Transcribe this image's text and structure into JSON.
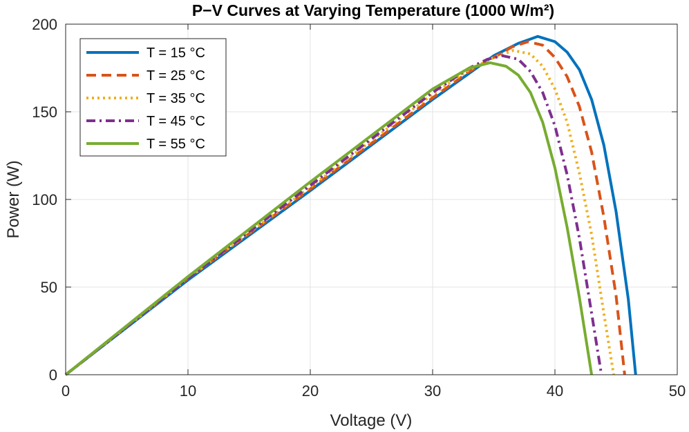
{
  "chart_data": {
    "type": "line",
    "title": "P−V Curves at Varying Temperature (1000 W/m²)",
    "xlabel": "Voltage (V)",
    "ylabel": "Power (W)",
    "xlim": [
      0,
      50
    ],
    "ylim": [
      0,
      200
    ],
    "xticks": [
      0,
      10,
      20,
      30,
      40,
      50
    ],
    "yticks": [
      0,
      50,
      100,
      150,
      200
    ],
    "xtick_labels": [
      "0",
      "10",
      "20",
      "30",
      "40",
      "50"
    ],
    "ytick_labels": [
      "0",
      "50",
      "100",
      "150",
      "200"
    ],
    "grid": true,
    "legend_position": "top-left",
    "series": [
      {
        "name": "T = 15 °C",
        "color": "#0072BD",
        "dash": "solid",
        "points": [
          [
            0,
            0
          ],
          [
            10,
            54
          ],
          [
            20,
            105
          ],
          [
            30,
            157
          ],
          [
            33,
            172
          ],
          [
            35,
            182
          ],
          [
            37,
            189
          ],
          [
            38.6,
            193
          ],
          [
            40,
            190
          ],
          [
            41,
            184
          ],
          [
            42,
            174
          ],
          [
            43,
            157
          ],
          [
            44,
            131
          ],
          [
            45,
            93
          ],
          [
            46,
            43
          ],
          [
            46.6,
            0
          ]
        ]
      },
      {
        "name": "T = 25 °C",
        "color": "#D95319",
        "dash": "dashed",
        "points": [
          [
            0,
            0
          ],
          [
            10,
            55
          ],
          [
            20,
            106
          ],
          [
            30,
            158
          ],
          [
            33,
            173
          ],
          [
            35,
            181
          ],
          [
            36.5,
            187
          ],
          [
            37.8,
            190
          ],
          [
            39,
            188
          ],
          [
            40,
            181
          ],
          [
            41,
            170
          ],
          [
            42,
            153
          ],
          [
            43,
            127
          ],
          [
            44,
            90
          ],
          [
            45,
            45
          ],
          [
            45.7,
            0
          ]
        ]
      },
      {
        "name": "T = 35 °C",
        "color": "#EDB120",
        "dash": "dotted",
        "points": [
          [
            0,
            0
          ],
          [
            10,
            55
          ],
          [
            20,
            107
          ],
          [
            30,
            160
          ],
          [
            33,
            174
          ],
          [
            35,
            181
          ],
          [
            36.6,
            185
          ],
          [
            38,
            183
          ],
          [
            39,
            176
          ],
          [
            40,
            163
          ],
          [
            41,
            144
          ],
          [
            42,
            115
          ],
          [
            43,
            80
          ],
          [
            44,
            35
          ],
          [
            44.8,
            0
          ]
        ]
      },
      {
        "name": "T = 45 °C",
        "color": "#7E2F8E",
        "dash": "dashdot",
        "points": [
          [
            0,
            0
          ],
          [
            10,
            55
          ],
          [
            20,
            108
          ],
          [
            30,
            161
          ],
          [
            33,
            175
          ],
          [
            34.5,
            180
          ],
          [
            35.7,
            182
          ],
          [
            37,
            180
          ],
          [
            38,
            173
          ],
          [
            39,
            161
          ],
          [
            40,
            142
          ],
          [
            41,
            114
          ],
          [
            42,
            78
          ],
          [
            43,
            35
          ],
          [
            43.8,
            0
          ]
        ]
      },
      {
        "name": "T = 55 °C",
        "color": "#77AC30",
        "dash": "solid",
        "points": [
          [
            0,
            0
          ],
          [
            10,
            56
          ],
          [
            20,
            110
          ],
          [
            30,
            163
          ],
          [
            33,
            175
          ],
          [
            34.7,
            178
          ],
          [
            36,
            176
          ],
          [
            37,
            171
          ],
          [
            38,
            161
          ],
          [
            39,
            144
          ],
          [
            40,
            118
          ],
          [
            41,
            84
          ],
          [
            42,
            44
          ],
          [
            43,
            0
          ]
        ]
      }
    ]
  }
}
